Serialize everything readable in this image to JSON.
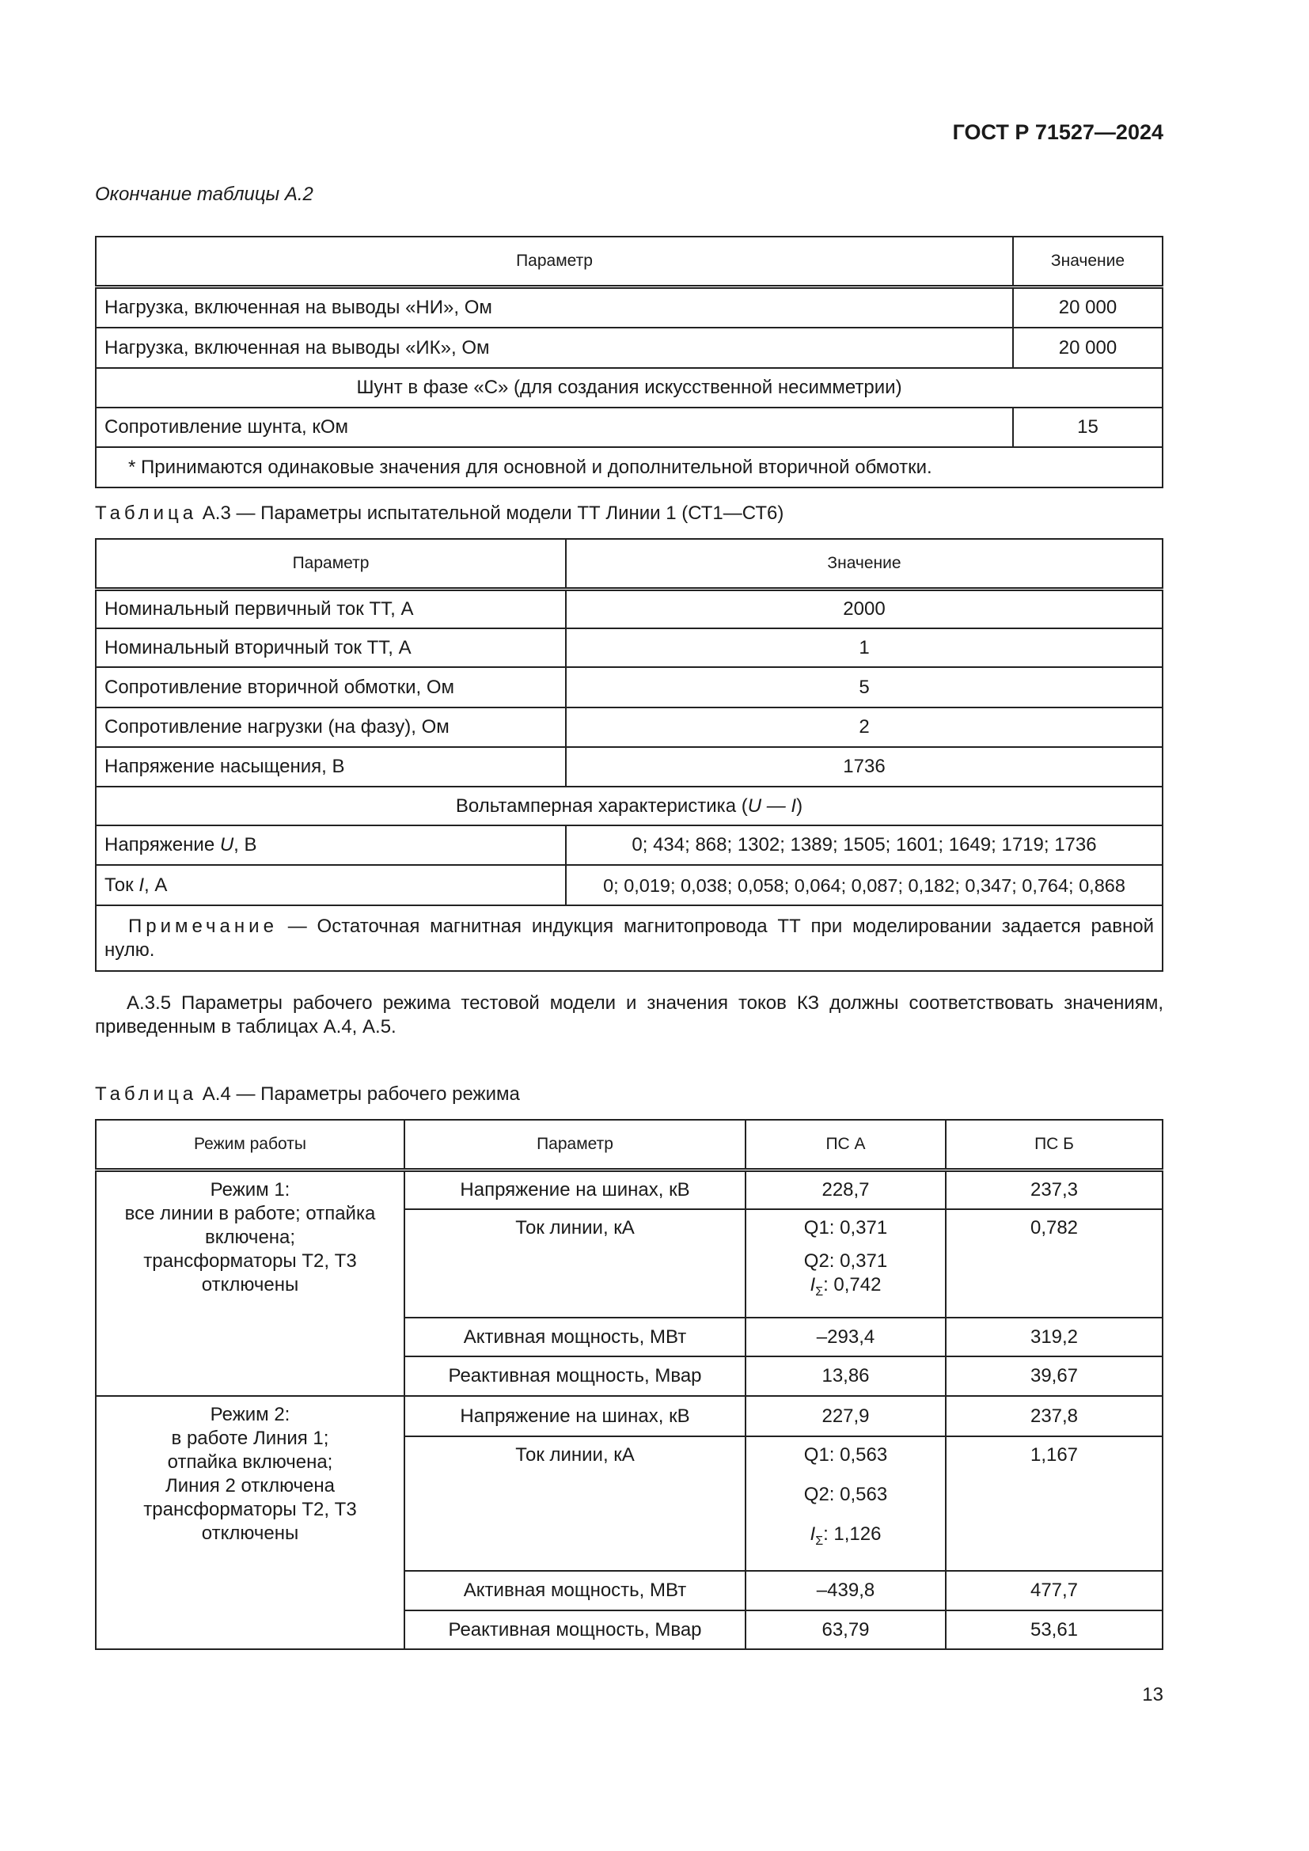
{
  "header": {
    "doc_id": "ГОСТ Р 71527—2024"
  },
  "table_a2": {
    "caption": "Окончание таблицы А.2",
    "headers": [
      "Параметр",
      "Значение"
    ],
    "rows": [
      {
        "param": "Нагрузка, включенная на выводы «НИ», Ом",
        "value": "20 000"
      },
      {
        "param": "Нагрузка, включенная на выводы «ИК», Ом",
        "value": "20 000"
      }
    ],
    "section": "Шунт в фазе «С» (для создания искусственной несимметрии)",
    "shunt_row": {
      "param": "Сопротивление шунта, кОм",
      "value": "15"
    },
    "footnote": "*  Принимаются одинаковые значения для основной и дополнительной вторичной обмотки."
  },
  "table_a3": {
    "caption_label": "Таблица",
    "caption_text": "А.3 — Параметры испытательной модели ТТ Линии 1 (СТ1—СТ6)",
    "headers": [
      "Параметр",
      "Значение"
    ],
    "rows": [
      {
        "param": "Номинальный первичный ток ТТ, А",
        "value": "2000"
      },
      {
        "param": "Номинальный вторичный ток ТТ, А",
        "value": "1"
      },
      {
        "param": "Сопротивление вторичной обмотки, Ом",
        "value": "5"
      },
      {
        "param": "Сопротивление нагрузки (на фазу), Ом",
        "value": "2"
      },
      {
        "param": "Напряжение насыщения, В",
        "value": "1736"
      }
    ],
    "section_pre": "Вольтамперная характеристика (",
    "section_var": "U — I",
    "section_post": ")",
    "voltage": {
      "label_pre": "Напряжение ",
      "label_var": "U",
      "label_post": ", В",
      "value": "0; 434; 868; 1302; 1389; 1505; 1601; 1649; 1719; 1736"
    },
    "current": {
      "label_pre": "Ток ",
      "label_var": "I",
      "label_post": ", А",
      "value": "0; 0,019; 0,038; 0,058; 0,064; 0,087; 0,182; 0,347; 0,764; 0,868"
    },
    "note_label": "Примечание",
    "note_text": " — Остаточная магнитная индукция магнитопровода ТТ при моделировании задается равной нулю."
  },
  "paragraph": "А.3.5 Параметры рабочего режима тестовой модели и значения токов КЗ должны соответствовать значениям, приведенным в таблицах А.4, А.5.",
  "table_a4": {
    "caption_label": "Таблица",
    "caption_text": "А.4 — Параметры рабочего режима",
    "headers": [
      "Режим работы",
      "Параметр",
      "ПС А",
      "ПС Б"
    ],
    "modes": [
      {
        "mode": "Режим 1:\nвсе линии в работе; отпайка включена;\nтрансформаторы Т2, Т3 отключены",
        "voltage": {
          "param": "Напряжение на шинах, кВ",
          "a": "228,7",
          "b": "237,3"
        },
        "current": {
          "param": "Ток линии, кА",
          "q1": "Q1: 0,371",
          "q2": "Q2: 0,371",
          "sum": ": 0,742",
          "b": "0,782"
        },
        "active": {
          "param": "Активная мощность, МВт",
          "a": "–293,4",
          "b": "319,2"
        },
        "reactive": {
          "param": "Реактивная мощность, Мвар",
          "a": "13,86",
          "b": "39,67"
        }
      },
      {
        "mode": "Режим 2:\nв работе Линия 1;\nотпайка включена;\nЛиния 2 отключена\nтрансформаторы Т2, Т3\nотключены",
        "voltage": {
          "param": "Напряжение на шинах, кВ",
          "a": "227,9",
          "b": "237,8"
        },
        "current": {
          "param": "Ток линии, кА",
          "q1": "Q1: 0,563",
          "q2": "Q2: 0,563",
          "sum": ": 1,126",
          "b": "1,167"
        },
        "active": {
          "param": "Активная мощность, МВт",
          "a": "–439,8",
          "b": "477,7"
        },
        "reactive": {
          "param": "Реактивная мощность, Мвар",
          "a": "63,79",
          "b": "53,61"
        }
      }
    ],
    "sum_symbol": "I",
    "sum_sub": "Σ"
  },
  "footer": {
    "page_number": "13"
  }
}
